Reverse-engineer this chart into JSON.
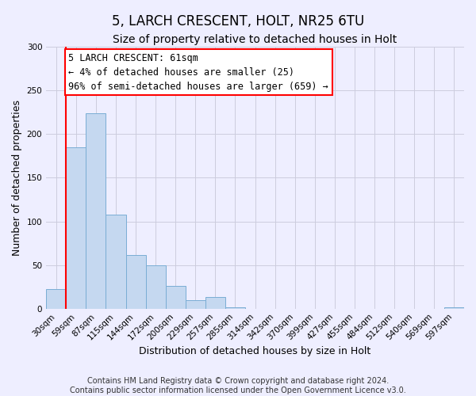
{
  "title": "5, LARCH CRESCENT, HOLT, NR25 6TU",
  "subtitle": "Size of property relative to detached houses in Holt",
  "xlabel": "Distribution of detached houses by size in Holt",
  "ylabel": "Number of detached properties",
  "footer_lines": [
    "Contains HM Land Registry data © Crown copyright and database right 2024.",
    "Contains public sector information licensed under the Open Government Licence v3.0."
  ],
  "bar_labels": [
    "30sqm",
    "59sqm",
    "87sqm",
    "115sqm",
    "144sqm",
    "172sqm",
    "200sqm",
    "229sqm",
    "257sqm",
    "285sqm",
    "314sqm",
    "342sqm",
    "370sqm",
    "399sqm",
    "427sqm",
    "455sqm",
    "484sqm",
    "512sqm",
    "540sqm",
    "569sqm",
    "597sqm"
  ],
  "bar_values": [
    22,
    185,
    224,
    108,
    61,
    50,
    26,
    10,
    13,
    2,
    0,
    0,
    0,
    0,
    0,
    0,
    0,
    0,
    0,
    0,
    2
  ],
  "bar_color": "#c5d8f0",
  "bar_edge_color": "#7aadd4",
  "vline_color": "red",
  "annotation_text": "5 LARCH CRESCENT: 61sqm\n← 4% of detached houses are smaller (25)\n96% of semi-detached houses are larger (659) →",
  "annotation_box_color": "white",
  "annotation_box_edge": "red",
  "ylim": [
    0,
    300
  ],
  "yticks": [
    0,
    50,
    100,
    150,
    200,
    250,
    300
  ],
  "background_color": "#eeeeff",
  "grid_color": "#ccccdd",
  "title_fontsize": 12,
  "subtitle_fontsize": 10,
  "axis_label_fontsize": 9,
  "tick_fontsize": 7.5,
  "annotation_fontsize": 8.5,
  "footer_fontsize": 7
}
